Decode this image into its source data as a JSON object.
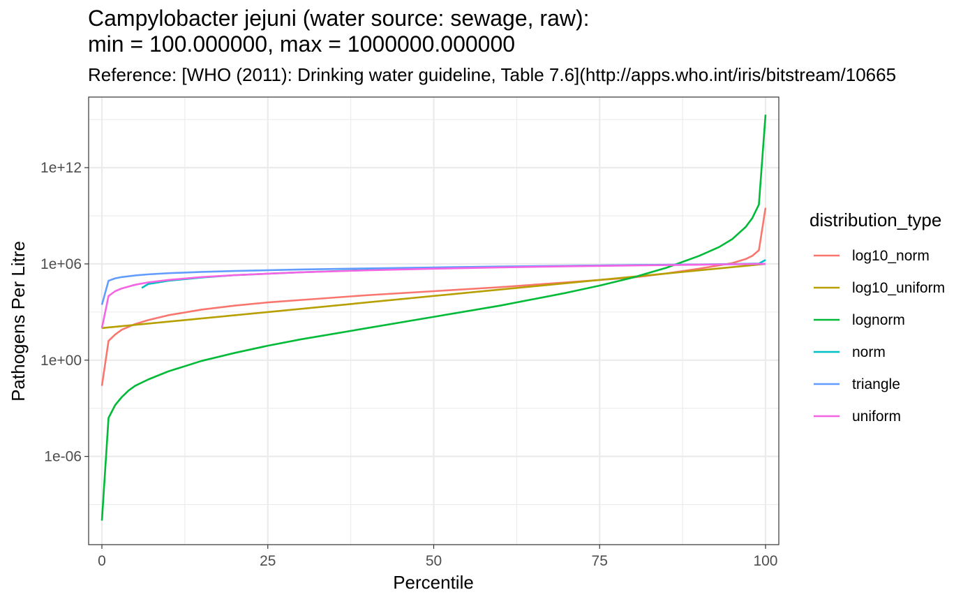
{
  "chart_data": {
    "type": "line",
    "title": "Campylobacter jejuni (water source: sewage, raw):\nmin = 100.000000, max = 1000000.000000",
    "subtitle": "Reference: [WHO (2011): Drinking water guideline, Table 7.6](http://apps.who.int/iris/bitstream/10665",
    "xlabel": "Percentile",
    "ylabel": "Pathogens Per Litre",
    "xlim": [
      -2,
      102
    ],
    "ylim_log10": [
      -11.5,
      16.4
    ],
    "y_scale": "log10",
    "grid": true,
    "legend_title": "distribution_type",
    "legend_position": "right",
    "x_ticks": [
      0,
      25,
      50,
      75,
      100
    ],
    "x_tick_labels": [
      "0",
      "25",
      "50",
      "75",
      "100"
    ],
    "y_ticks_log10": [
      -6,
      0,
      6,
      12
    ],
    "y_tick_labels": [
      "1e-06",
      "1e+00",
      "1e+06",
      "1e+12"
    ],
    "series": [
      {
        "name": "log10_norm",
        "color": "#F8766D",
        "x": [
          0,
          1,
          2,
          3,
          5,
          7,
          10,
          15,
          20,
          25,
          30,
          40,
          50,
          60,
          70,
          75,
          80,
          85,
          90,
          95,
          97,
          98,
          99,
          100
        ],
        "y_log10": [
          -1.6,
          1.2,
          1.6,
          1.9,
          2.25,
          2.5,
          2.8,
          3.15,
          3.4,
          3.6,
          3.75,
          4.05,
          4.3,
          4.55,
          4.85,
          5.0,
          5.15,
          5.4,
          5.7,
          6.05,
          6.3,
          6.5,
          6.85,
          9.5
        ]
      },
      {
        "name": "log10_uniform",
        "color": "#B79F00",
        "x": [
          0,
          100
        ],
        "y_log10": [
          2.0,
          6.0
        ]
      },
      {
        "name": "lognorm",
        "color": "#00BA38",
        "x": [
          0,
          1,
          2,
          3,
          4,
          5,
          7,
          10,
          15,
          20,
          25,
          30,
          40,
          50,
          60,
          70,
          75,
          80,
          85,
          90,
          93,
          95,
          97,
          98,
          99,
          100
        ],
        "y_log10": [
          -10.0,
          -3.6,
          -2.8,
          -2.3,
          -1.9,
          -1.6,
          -1.2,
          -0.7,
          -0.05,
          0.45,
          0.9,
          1.3,
          2.0,
          2.7,
          3.4,
          4.2,
          4.65,
          5.15,
          5.75,
          6.5,
          7.05,
          7.55,
          8.3,
          8.85,
          9.7,
          15.3
        ]
      },
      {
        "name": "norm",
        "color": "#00BFC4",
        "x": [
          6,
          7,
          10,
          15,
          20,
          30,
          40,
          50,
          60,
          70,
          80,
          90,
          95,
          99,
          100
        ],
        "y_log10": [
          4.5,
          4.75,
          4.95,
          5.15,
          5.3,
          5.48,
          5.62,
          5.72,
          5.8,
          5.87,
          5.92,
          5.96,
          5.99,
          6.02,
          6.25
        ]
      },
      {
        "name": "triangle",
        "color": "#619CFF",
        "x": [
          0,
          1,
          2,
          3,
          5,
          7,
          10,
          15,
          20,
          30,
          40,
          50,
          60,
          70,
          80,
          90,
          95,
          99,
          100
        ],
        "y_log10": [
          3.45,
          4.95,
          5.1,
          5.18,
          5.28,
          5.35,
          5.42,
          5.5,
          5.56,
          5.65,
          5.72,
          5.78,
          5.84,
          5.88,
          5.93,
          5.96,
          5.98,
          6.0,
          6.0
        ]
      },
      {
        "name": "uniform",
        "color": "#F564E3",
        "x": [
          0,
          1,
          2,
          3,
          5,
          7,
          10,
          15,
          20,
          30,
          40,
          50,
          60,
          70,
          80,
          90,
          95,
          99,
          100
        ],
        "y_log10": [
          2.0,
          4.0,
          4.3,
          4.47,
          4.7,
          4.85,
          5.0,
          5.18,
          5.3,
          5.48,
          5.6,
          5.7,
          5.78,
          5.85,
          5.9,
          5.95,
          5.98,
          6.0,
          6.0
        ]
      }
    ]
  }
}
